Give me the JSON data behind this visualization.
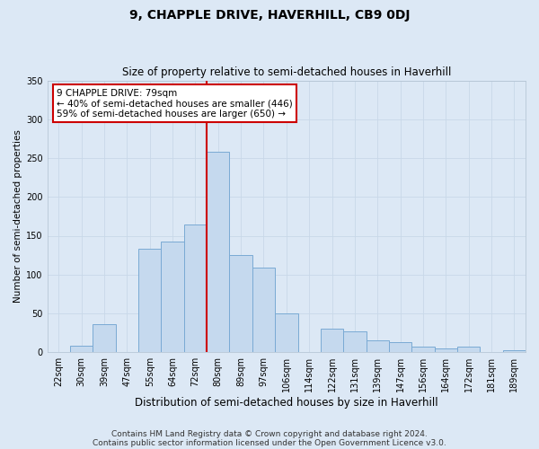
{
  "title": "9, CHAPPLE DRIVE, HAVERHILL, CB9 0DJ",
  "subtitle": "Size of property relative to semi-detached houses in Haverhill",
  "xlabel": "Distribution of semi-detached houses by size in Haverhill",
  "ylabel": "Number of semi-detached properties",
  "categories": [
    "22sqm",
    "30sqm",
    "39sqm",
    "47sqm",
    "55sqm",
    "64sqm",
    "72sqm",
    "80sqm",
    "89sqm",
    "97sqm",
    "106sqm",
    "114sqm",
    "122sqm",
    "131sqm",
    "139sqm",
    "147sqm",
    "156sqm",
    "164sqm",
    "172sqm",
    "181sqm",
    "189sqm"
  ],
  "values": [
    0,
    8,
    36,
    0,
    133,
    143,
    165,
    258,
    125,
    109,
    50,
    0,
    30,
    27,
    15,
    13,
    7,
    5,
    7,
    0,
    3
  ],
  "bar_color": "#c5d9ee",
  "bar_edge_color": "#7aaad4",
  "vline_color": "#cc0000",
  "vline_x_index": 7,
  "annotation_text": "9 CHAPPLE DRIVE: 79sqm\n← 40% of semi-detached houses are smaller (446)\n59% of semi-detached houses are larger (650) →",
  "annotation_box_facecolor": "#ffffff",
  "annotation_box_edgecolor": "#cc0000",
  "grid_color": "#c8d8e8",
  "bg_color": "#dce8f5",
  "fig_bg_color": "#dce8f5",
  "ylim": [
    0,
    350
  ],
  "yticks": [
    0,
    50,
    100,
    150,
    200,
    250,
    300,
    350
  ],
  "title_fontsize": 10,
  "subtitle_fontsize": 8.5,
  "xlabel_fontsize": 8.5,
  "ylabel_fontsize": 7.5,
  "tick_fontsize": 7,
  "annotation_fontsize": 7.5,
  "footer_fontsize": 6.5,
  "footer_line1": "Contains HM Land Registry data © Crown copyright and database right 2024.",
  "footer_line2": "Contains public sector information licensed under the Open Government Licence v3.0."
}
